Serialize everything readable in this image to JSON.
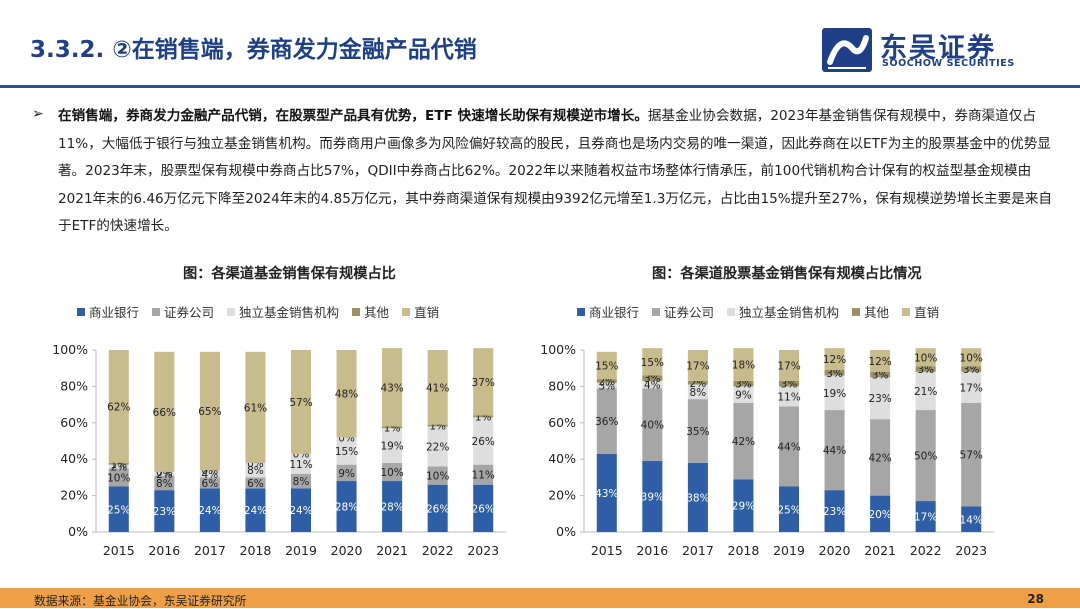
{
  "header": {
    "title": "3.3.2. ②在销售端，券商发力金融产品代销",
    "logo_cn": "东吴证券",
    "logo_en": "SOOCHOW SECURITIES"
  },
  "summary": {
    "bullet": "➢",
    "bold": "在销售端，券商发力金融产品代销，在股票型产品具有优势，ETF 快速增长助保有规模逆市增长。",
    "text": "据基金业协会数据，2023年基金销售保有规模中，券商渠道仅占11%，大幅低于银行与独立基金销售机构。而券商用户画像多为风险偏好较高的股民，且券商也是场内交易的唯一渠道，因此券商在以ETF为主的股票基金中的优势显著。2023年末，股票型保有规模中券商占比57%，QDII中券商占比62%。2022年以来随着权益市场整体行情承压，前100代销机构合计保有的权益型基金规模由2021年末的6.46万亿元下降至2024年末的4.85万亿元，其中券商渠道保有规模由9392亿元增至1.3万亿元，占比由15%提升至27%，保有规模逆势增长主要是来自于ETF的快速增长。"
  },
  "colors": {
    "bank": "#2e5fa6",
    "broker": "#a6a6a6",
    "independent": "#dedede",
    "other": "#9c9166",
    "direct": "#c8bb8c"
  },
  "chart_data": [
    {
      "type": "bar",
      "stacked": true,
      "title": "图：各渠道基金销售保有规模占比",
      "categories": [
        "2015",
        "2016",
        "2017",
        "2018",
        "2019",
        "2020",
        "2021",
        "2022",
        "2023"
      ],
      "yticks": [
        "0%",
        "20%",
        "40%",
        "60%",
        "80%",
        "100%"
      ],
      "ylim": [
        0,
        100
      ],
      "legend_position": "top",
      "series": [
        {
          "name": "商业银行",
          "values": [
            25,
            23,
            24,
            24,
            24,
            28,
            28,
            26,
            26
          ],
          "labels": [
            "25%",
            "23%",
            "24%",
            "24%",
            "24%",
            "28%",
            "28%",
            "26%",
            "26%"
          ]
        },
        {
          "name": "证券公司",
          "values": [
            10,
            8,
            6,
            6,
            8,
            9,
            10,
            10,
            11
          ],
          "labels": [
            "10%",
            "8%",
            "6%",
            "6%",
            "8%",
            "9%",
            "10%",
            "10%",
            "11%"
          ]
        },
        {
          "name": "独立基金销售机构",
          "values": [
            2,
            2,
            4,
            8,
            11,
            15,
            19,
            22,
            26
          ],
          "labels": [
            "2%",
            "2%",
            "4%",
            "8%",
            "11%",
            "15%",
            "19%",
            "22%",
            "26%"
          ]
        },
        {
          "name": "其他",
          "values": [
            1,
            0,
            0,
            0,
            0,
            0,
            1,
            1,
            1
          ],
          "labels": [
            "1%",
            "0%",
            "0%",
            "0%",
            "0%",
            "0%",
            "1%",
            "1%",
            "1%"
          ]
        },
        {
          "name": "直销",
          "values": [
            62,
            66,
            65,
            61,
            57,
            48,
            43,
            41,
            37
          ],
          "labels": [
            "62%",
            "66%",
            "65%",
            "61%",
            "57%",
            "48%",
            "43%",
            "41%",
            "37%"
          ]
        }
      ]
    },
    {
      "type": "bar",
      "stacked": true,
      "title": "图：各渠道股票基金销售保有规模占比情况",
      "categories": [
        "2015",
        "2016",
        "2017",
        "2018",
        "2019",
        "2020",
        "2021",
        "2022",
        "2023"
      ],
      "yticks": [
        "0%",
        "20%",
        "40%",
        "60%",
        "80%",
        "100%"
      ],
      "ylim": [
        0,
        100
      ],
      "legend_position": "top",
      "series": [
        {
          "name": "商业银行",
          "values": [
            43,
            39,
            38,
            29,
            25,
            23,
            20,
            17,
            14
          ],
          "labels": [
            "43%",
            "39%",
            "38%",
            "29%",
            "25%",
            "23%",
            "20%",
            "17%",
            "14%"
          ]
        },
        {
          "name": "证券公司",
          "values": [
            36,
            40,
            35,
            42,
            44,
            44,
            42,
            50,
            57
          ],
          "labels": [
            "36%",
            "40%",
            "35%",
            "42%",
            "44%",
            "44%",
            "42%",
            "50%",
            "57%"
          ]
        },
        {
          "name": "独立基金销售机构",
          "values": [
            3,
            4,
            8,
            9,
            11,
            19,
            23,
            21,
            17
          ],
          "labels": [
            "3%",
            "4%",
            "8%",
            "9%",
            "11%",
            "19%",
            "23%",
            "21%",
            "17%"
          ]
        },
        {
          "name": "其他",
          "values": [
            2,
            3,
            2,
            3,
            3,
            3,
            3,
            3,
            3
          ],
          "labels": [
            "2%",
            "3%",
            "2%",
            "3%",
            "3%",
            "3%",
            "3%",
            "3%",
            "3%"
          ]
        },
        {
          "name": "直销",
          "values": [
            15,
            15,
            17,
            18,
            17,
            12,
            12,
            10,
            10
          ],
          "labels": [
            "15%",
            "15%",
            "17%",
            "18%",
            "17%",
            "12%",
            "12%",
            "10%",
            "10%"
          ]
        }
      ]
    }
  ],
  "footer": {
    "source": "数据来源：基金业协会，东吴证券研究所",
    "page": "28"
  }
}
